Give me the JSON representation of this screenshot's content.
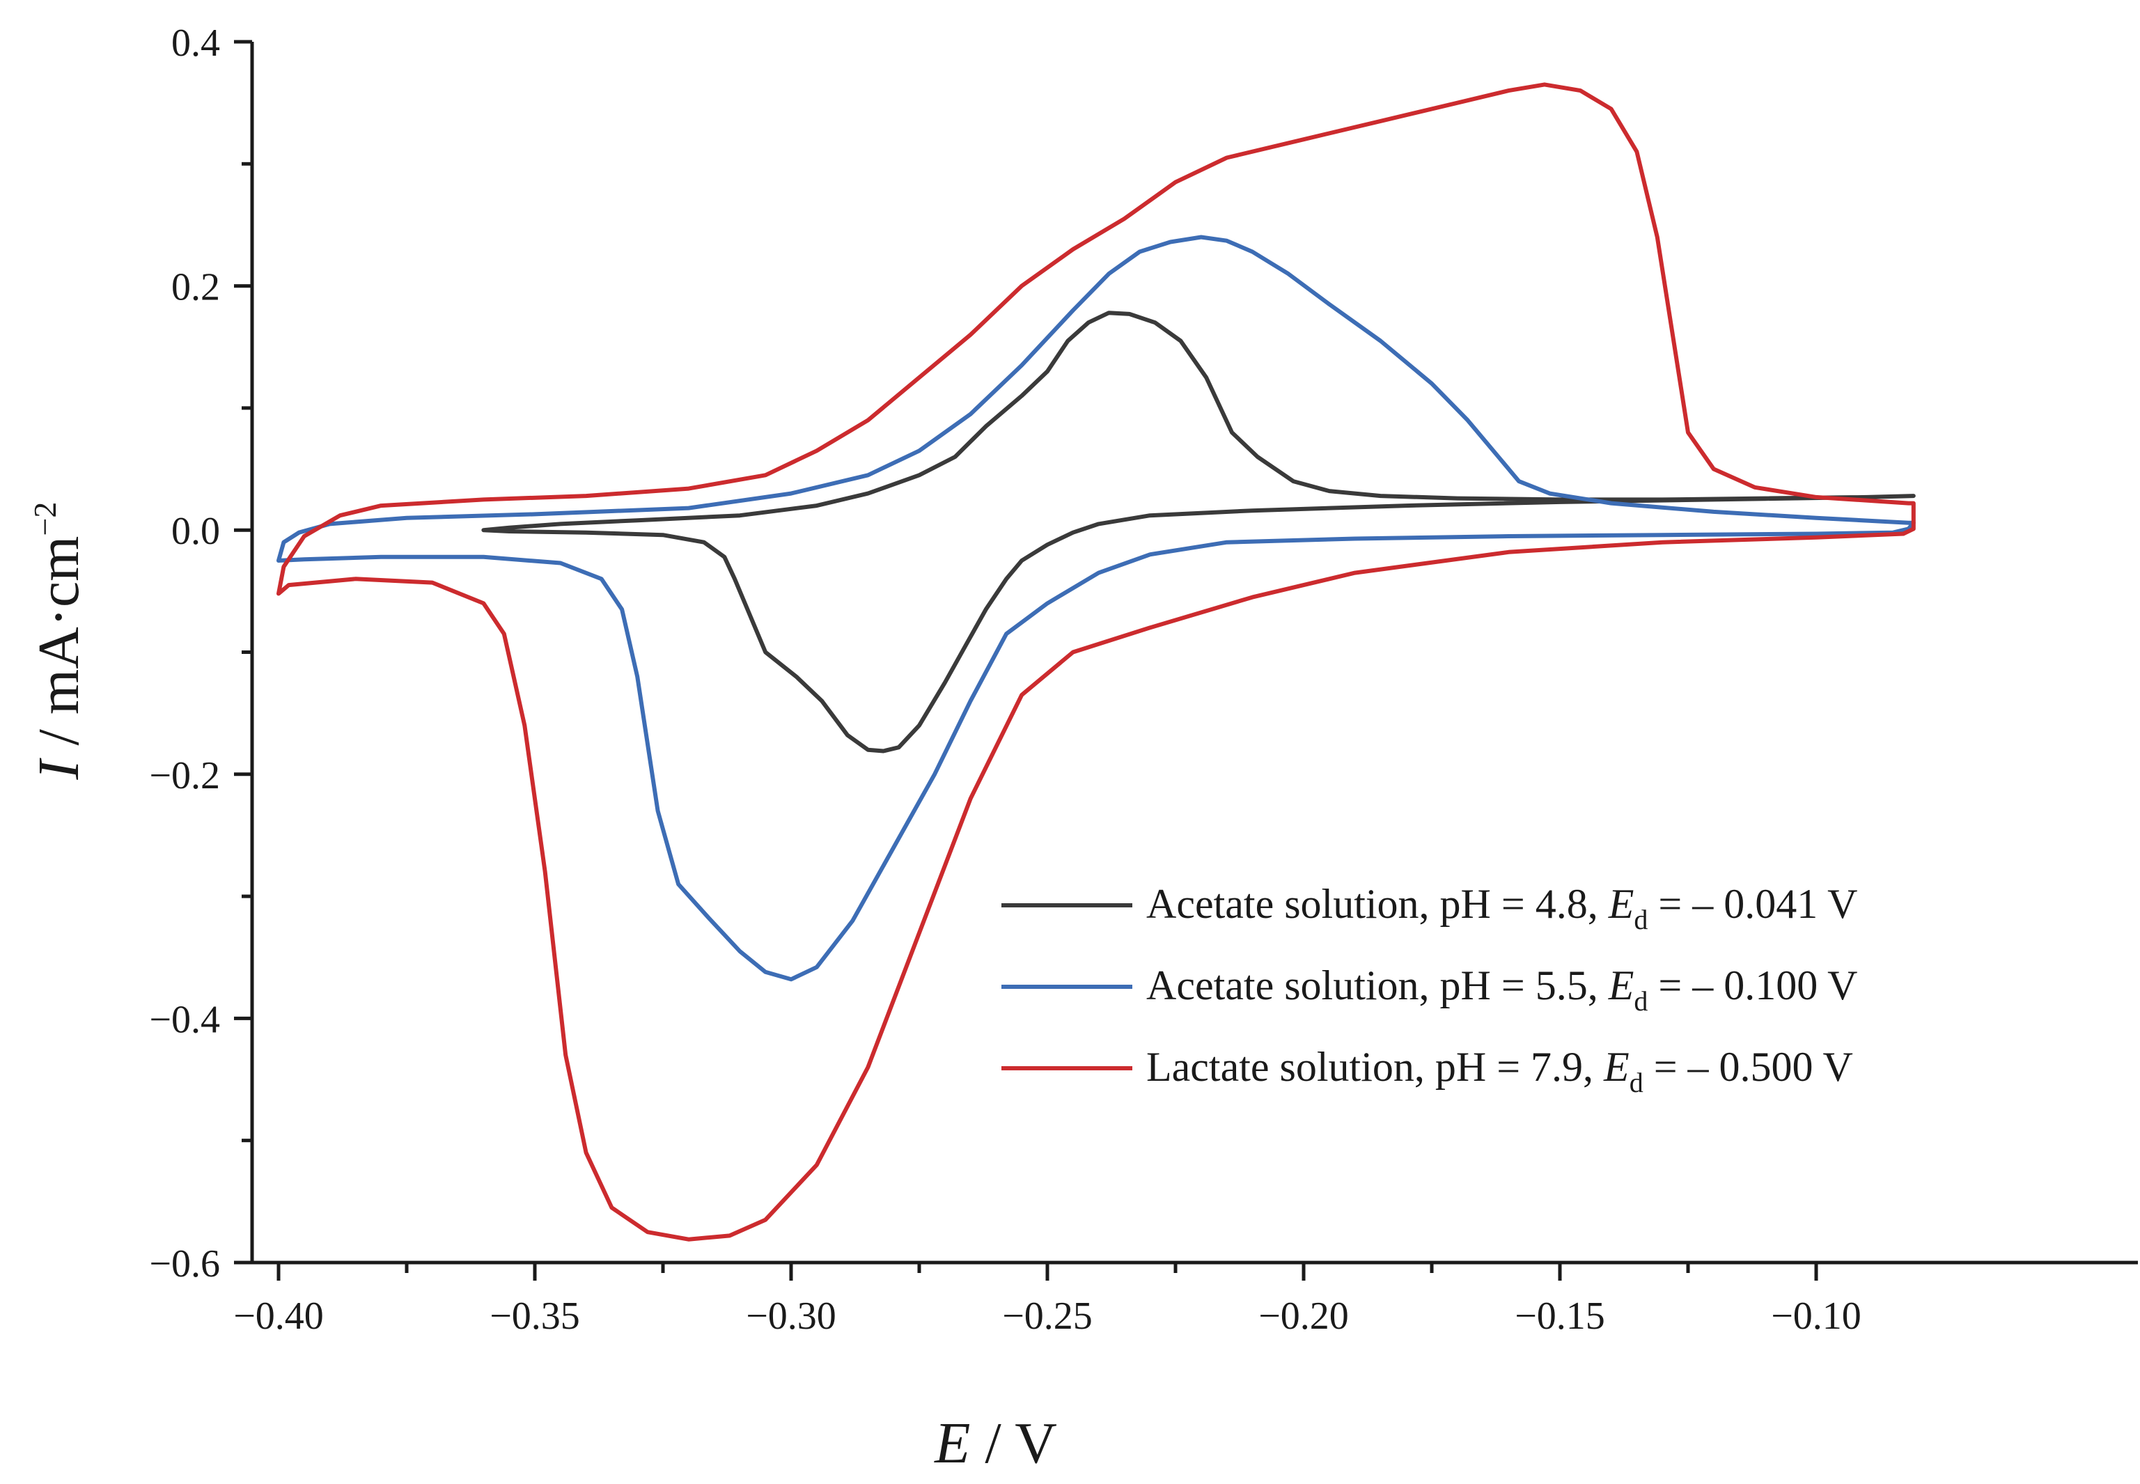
{
  "chart_data": {
    "type": "line",
    "title": "",
    "xlabel": {
      "symbol": "E",
      "unit": " / V"
    },
    "ylabel": {
      "symbol": "I",
      "unit": " / mA·cm",
      "exp": "−2"
    },
    "xlim": [
      -0.405,
      -0.04
    ],
    "ylim": [
      -0.6,
      0.4
    ],
    "x_major_ticks": [
      -0.4,
      -0.35,
      -0.3,
      -0.25,
      -0.2,
      -0.15,
      -0.1
    ],
    "x_tick_labels": [
      "−0.40",
      "−0.35",
      "−0.30",
      "−0.25",
      "−0.20",
      "−0.15",
      "−0.10"
    ],
    "x_minor_ticks": [
      -0.375,
      -0.325,
      -0.275,
      -0.225,
      -0.175,
      -0.125
    ],
    "y_major_ticks": [
      -0.6,
      -0.4,
      -0.2,
      0.0,
      0.2,
      0.4
    ],
    "y_tick_labels": [
      "−0.6",
      "−0.4",
      "−0.2",
      "0.0",
      "0.2",
      "0.4"
    ],
    "y_minor_ticks": [
      -0.5,
      -0.3,
      -0.1,
      0.1,
      0.3
    ],
    "grid": false,
    "legend_position": "bottom-right",
    "series": [
      {
        "name": "Acetate solution, pH = 4.8, Ed = – 0.041 V",
        "legend": {
          "pre": "Acetate solution, pH = 4.8, ",
          "sym": "E",
          "sub": "d",
          "post": " = – 0.041 V"
        },
        "color": "#3a3a3a",
        "points": [
          [
            -0.36,
            0.0
          ],
          [
            -0.355,
            0.002
          ],
          [
            -0.345,
            0.005
          ],
          [
            -0.33,
            0.008
          ],
          [
            -0.31,
            0.012
          ],
          [
            -0.295,
            0.02
          ],
          [
            -0.285,
            0.03
          ],
          [
            -0.275,
            0.045
          ],
          [
            -0.268,
            0.06
          ],
          [
            -0.262,
            0.085
          ],
          [
            -0.255,
            0.11
          ],
          [
            -0.25,
            0.13
          ],
          [
            -0.246,
            0.155
          ],
          [
            -0.242,
            0.17
          ],
          [
            -0.238,
            0.178
          ],
          [
            -0.234,
            0.177
          ],
          [
            -0.229,
            0.17
          ],
          [
            -0.224,
            0.155
          ],
          [
            -0.219,
            0.125
          ],
          [
            -0.214,
            0.08
          ],
          [
            -0.209,
            0.06
          ],
          [
            -0.202,
            0.04
          ],
          [
            -0.195,
            0.032
          ],
          [
            -0.185,
            0.028
          ],
          [
            -0.17,
            0.026
          ],
          [
            -0.15,
            0.025
          ],
          [
            -0.13,
            0.025
          ],
          [
            -0.11,
            0.026
          ],
          [
            -0.09,
            0.027
          ],
          [
            -0.081,
            0.028
          ],
          [
            -0.081,
            0.028
          ],
          [
            -0.09,
            0.027
          ],
          [
            -0.12,
            0.025
          ],
          [
            -0.15,
            0.023
          ],
          [
            -0.18,
            0.02
          ],
          [
            -0.21,
            0.016
          ],
          [
            -0.23,
            0.012
          ],
          [
            -0.24,
            0.005
          ],
          [
            -0.245,
            -0.002
          ],
          [
            -0.25,
            -0.012
          ],
          [
            -0.255,
            -0.025
          ],
          [
            -0.258,
            -0.04
          ],
          [
            -0.262,
            -0.065
          ],
          [
            -0.266,
            -0.095
          ],
          [
            -0.27,
            -0.125
          ],
          [
            -0.275,
            -0.16
          ],
          [
            -0.279,
            -0.178
          ],
          [
            -0.282,
            -0.181
          ],
          [
            -0.285,
            -0.18
          ],
          [
            -0.289,
            -0.168
          ],
          [
            -0.294,
            -0.14
          ],
          [
            -0.299,
            -0.12
          ],
          [
            -0.305,
            -0.1
          ],
          [
            -0.308,
            -0.07
          ],
          [
            -0.311,
            -0.04
          ],
          [
            -0.313,
            -0.022
          ],
          [
            -0.317,
            -0.01
          ],
          [
            -0.325,
            -0.004
          ],
          [
            -0.34,
            -0.002
          ],
          [
            -0.355,
            -0.001
          ],
          [
            -0.36,
            0.0
          ]
        ]
      },
      {
        "name": "Acetate solution, pH = 5.5, Ed = – 0.100 V",
        "legend": {
          "pre": "Acetate solution, pH = 5.5, ",
          "sym": "E",
          "sub": "d",
          "post": " = – 0.100 V"
        },
        "color": "#3d6db5",
        "points": [
          [
            -0.4,
            -0.025
          ],
          [
            -0.399,
            -0.01
          ],
          [
            -0.396,
            -0.002
          ],
          [
            -0.39,
            0.005
          ],
          [
            -0.375,
            0.01
          ],
          [
            -0.35,
            0.013
          ],
          [
            -0.32,
            0.018
          ],
          [
            -0.3,
            0.03
          ],
          [
            -0.285,
            0.045
          ],
          [
            -0.275,
            0.065
          ],
          [
            -0.265,
            0.095
          ],
          [
            -0.255,
            0.135
          ],
          [
            -0.245,
            0.18
          ],
          [
            -0.238,
            0.21
          ],
          [
            -0.232,
            0.228
          ],
          [
            -0.226,
            0.236
          ],
          [
            -0.22,
            0.24
          ],
          [
            -0.215,
            0.237
          ],
          [
            -0.21,
            0.228
          ],
          [
            -0.203,
            0.21
          ],
          [
            -0.195,
            0.185
          ],
          [
            -0.185,
            0.155
          ],
          [
            -0.175,
            0.12
          ],
          [
            -0.168,
            0.09
          ],
          [
            -0.162,
            0.06
          ],
          [
            -0.158,
            0.04
          ],
          [
            -0.152,
            0.03
          ],
          [
            -0.14,
            0.022
          ],
          [
            -0.12,
            0.015
          ],
          [
            -0.1,
            0.01
          ],
          [
            -0.082,
            0.006
          ],
          [
            -0.081,
            0.006
          ],
          [
            -0.082,
            0.001
          ],
          [
            -0.085,
            -0.002
          ],
          [
            -0.1,
            -0.003
          ],
          [
            -0.13,
            -0.004
          ],
          [
            -0.16,
            -0.005
          ],
          [
            -0.19,
            -0.007
          ],
          [
            -0.215,
            -0.01
          ],
          [
            -0.23,
            -0.02
          ],
          [
            -0.24,
            -0.035
          ],
          [
            -0.25,
            -0.06
          ],
          [
            -0.258,
            -0.085
          ],
          [
            -0.265,
            -0.14
          ],
          [
            -0.272,
            -0.2
          ],
          [
            -0.28,
            -0.26
          ],
          [
            -0.288,
            -0.32
          ],
          [
            -0.295,
            -0.358
          ],
          [
            -0.3,
            -0.368
          ],
          [
            -0.305,
            -0.362
          ],
          [
            -0.31,
            -0.345
          ],
          [
            -0.316,
            -0.318
          ],
          [
            -0.322,
            -0.29
          ],
          [
            -0.326,
            -0.23
          ],
          [
            -0.33,
            -0.12
          ],
          [
            -0.333,
            -0.065
          ],
          [
            -0.337,
            -0.04
          ],
          [
            -0.345,
            -0.027
          ],
          [
            -0.36,
            -0.022
          ],
          [
            -0.38,
            -0.022
          ],
          [
            -0.395,
            -0.024
          ],
          [
            -0.4,
            -0.025
          ]
        ]
      },
      {
        "name": "Lactate solution, pH = 7.9, Ed = – 0.500 V",
        "legend": {
          "pre": "Lactate solution, pH = 7.9, ",
          "sym": "E",
          "sub": "d",
          "post": " = – 0.500 V"
        },
        "color": "#cc2b2e",
        "points": [
          [
            -0.4,
            -0.052
          ],
          [
            -0.399,
            -0.03
          ],
          [
            -0.395,
            -0.005
          ],
          [
            -0.388,
            0.012
          ],
          [
            -0.38,
            0.02
          ],
          [
            -0.36,
            0.025
          ],
          [
            -0.34,
            0.028
          ],
          [
            -0.32,
            0.034
          ],
          [
            -0.305,
            0.045
          ],
          [
            -0.295,
            0.065
          ],
          [
            -0.285,
            0.09
          ],
          [
            -0.275,
            0.125
          ],
          [
            -0.265,
            0.16
          ],
          [
            -0.255,
            0.2
          ],
          [
            -0.245,
            0.23
          ],
          [
            -0.235,
            0.255
          ],
          [
            -0.225,
            0.285
          ],
          [
            -0.215,
            0.305
          ],
          [
            -0.2,
            0.32
          ],
          [
            -0.185,
            0.335
          ],
          [
            -0.17,
            0.35
          ],
          [
            -0.16,
            0.36
          ],
          [
            -0.153,
            0.365
          ],
          [
            -0.146,
            0.36
          ],
          [
            -0.14,
            0.345
          ],
          [
            -0.135,
            0.31
          ],
          [
            -0.131,
            0.24
          ],
          [
            -0.128,
            0.16
          ],
          [
            -0.125,
            0.08
          ],
          [
            -0.12,
            0.05
          ],
          [
            -0.112,
            0.035
          ],
          [
            -0.1,
            0.027
          ],
          [
            -0.082,
            0.022
          ],
          [
            -0.081,
            0.022
          ],
          [
            -0.081,
            0.001
          ],
          [
            -0.083,
            -0.003
          ],
          [
            -0.1,
            -0.006
          ],
          [
            -0.13,
            -0.01
          ],
          [
            -0.16,
            -0.018
          ],
          [
            -0.19,
            -0.035
          ],
          [
            -0.21,
            -0.055
          ],
          [
            -0.23,
            -0.08
          ],
          [
            -0.245,
            -0.1
          ],
          [
            -0.255,
            -0.135
          ],
          [
            -0.265,
            -0.22
          ],
          [
            -0.275,
            -0.33
          ],
          [
            -0.285,
            -0.44
          ],
          [
            -0.295,
            -0.52
          ],
          [
            -0.305,
            -0.565
          ],
          [
            -0.312,
            -0.578
          ],
          [
            -0.32,
            -0.581
          ],
          [
            -0.328,
            -0.575
          ],
          [
            -0.335,
            -0.555
          ],
          [
            -0.34,
            -0.51
          ],
          [
            -0.344,
            -0.43
          ],
          [
            -0.348,
            -0.28
          ],
          [
            -0.352,
            -0.16
          ],
          [
            -0.356,
            -0.085
          ],
          [
            -0.36,
            -0.06
          ],
          [
            -0.37,
            -0.043
          ],
          [
            -0.385,
            -0.04
          ],
          [
            -0.398,
            -0.045
          ],
          [
            -0.4,
            -0.052
          ]
        ]
      }
    ]
  }
}
